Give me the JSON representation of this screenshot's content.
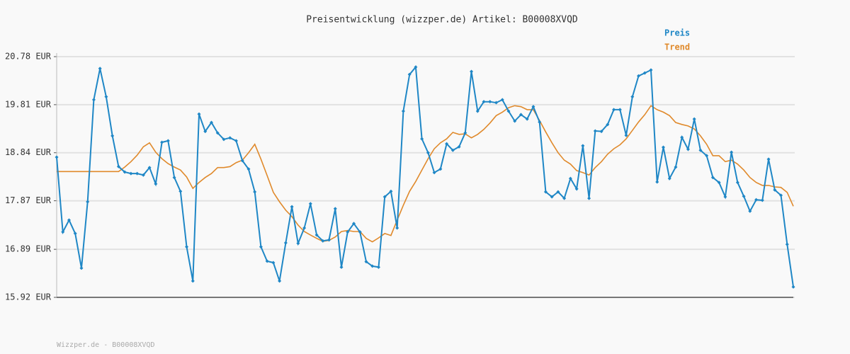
{
  "chart_data": {
    "type": "line",
    "title": "Preisentwicklung (wizzper.de) Artikel: B00008XVQD",
    "footer": "Wizzper.de - B00008XVQD",
    "ylim": [
      15.92,
      20.78
    ],
    "yticks": [
      {
        "value": 15.92,
        "label": "15.92 EUR"
      },
      {
        "value": 16.89,
        "label": "16.89 EUR"
      },
      {
        "value": 17.87,
        "label": "17.87 EUR"
      },
      {
        "value": 18.84,
        "label": "18.84 EUR"
      },
      {
        "value": 19.81,
        "label": "19.81 EUR"
      },
      {
        "value": 20.78,
        "label": "20.78 EUR"
      }
    ],
    "grid": true,
    "legend": "top-right",
    "series": [
      {
        "name": "Preis",
        "color": "#1f87c6",
        "markers": true,
        "values": [
          18.75,
          17.24,
          17.48,
          17.21,
          16.51,
          17.85,
          19.91,
          20.54,
          19.97,
          19.18,
          18.56,
          18.45,
          18.42,
          18.42,
          18.39,
          18.54,
          18.21,
          19.05,
          19.08,
          18.34,
          18.06,
          16.94,
          16.25,
          19.62,
          19.27,
          19.45,
          19.24,
          19.11,
          19.14,
          19.08,
          18.68,
          18.51,
          18.05,
          16.94,
          16.65,
          16.62,
          16.25,
          17.02,
          17.75,
          17.01,
          17.32,
          17.81,
          17.18,
          17.06,
          17.08,
          17.71,
          16.53,
          17.24,
          17.41,
          17.24,
          16.64,
          16.55,
          16.53,
          17.95,
          18.06,
          17.32,
          19.68,
          20.42,
          20.57,
          19.12,
          18.84,
          18.44,
          18.51,
          19.02,
          18.89,
          18.96,
          19.24,
          20.48,
          19.68,
          19.87,
          19.87,
          19.85,
          19.91,
          19.68,
          19.48,
          19.61,
          19.52,
          19.77,
          19.46,
          18.05,
          17.95,
          18.05,
          17.92,
          18.32,
          18.11,
          18.98,
          17.92,
          19.28,
          19.27,
          19.41,
          19.71,
          19.71,
          19.19,
          19.97,
          20.39,
          20.45,
          20.51,
          18.25,
          18.95,
          18.32,
          18.55,
          19.15,
          18.91,
          19.52,
          18.89,
          18.78,
          18.34,
          18.24,
          17.95,
          18.85,
          18.24,
          17.96,
          17.66,
          17.89,
          17.88,
          18.71,
          18.09,
          17.98,
          16.99,
          16.13
        ]
      },
      {
        "name": "Trend",
        "color": "#e08a2c",
        "markers": false,
        "values": [
          18.46,
          18.46,
          18.46,
          18.46,
          18.46,
          18.46,
          18.46,
          18.46,
          18.46,
          18.46,
          18.46,
          18.55,
          18.66,
          18.79,
          18.96,
          19.04,
          18.85,
          18.72,
          18.62,
          18.55,
          18.49,
          18.35,
          18.12,
          18.24,
          18.34,
          18.42,
          18.54,
          18.54,
          18.56,
          18.64,
          18.69,
          18.84,
          19.01,
          18.71,
          18.38,
          18.04,
          17.85,
          17.68,
          17.55,
          17.38,
          17.25,
          17.18,
          17.11,
          17.05,
          17.07,
          17.14,
          17.25,
          17.27,
          17.25,
          17.25,
          17.11,
          17.04,
          17.12,
          17.21,
          17.17,
          17.48,
          17.78,
          18.06,
          18.26,
          18.49,
          18.72,
          18.92,
          19.04,
          19.12,
          19.25,
          19.21,
          19.22,
          19.14,
          19.21,
          19.31,
          19.44,
          19.59,
          19.66,
          19.75,
          19.79,
          19.77,
          19.71,
          19.71,
          19.49,
          19.26,
          19.04,
          18.84,
          18.69,
          18.61,
          18.48,
          18.44,
          18.39,
          18.54,
          18.66,
          18.81,
          18.92,
          19.0,
          19.12,
          19.29,
          19.46,
          19.61,
          19.79,
          19.71,
          19.66,
          19.59,
          19.45,
          19.41,
          19.38,
          19.32,
          19.18,
          19.01,
          18.78,
          18.78,
          18.66,
          18.69,
          18.61,
          18.49,
          18.34,
          18.24,
          18.18,
          18.18,
          18.15,
          18.14,
          18.04,
          17.76
        ]
      }
    ]
  }
}
